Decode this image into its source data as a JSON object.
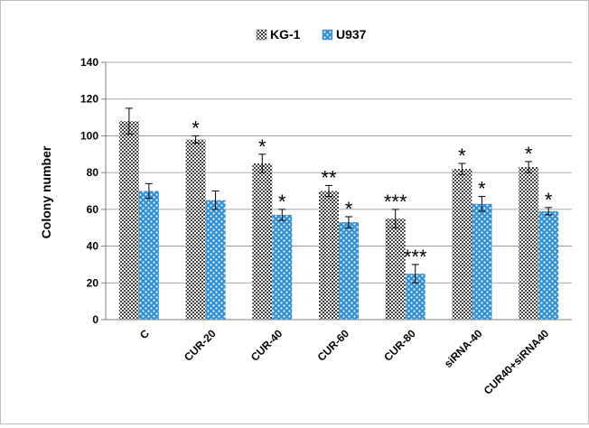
{
  "chart_data": {
    "type": "bar",
    "title": "",
    "xlabel": "",
    "ylabel": "Colony number",
    "ylim": [
      0,
      140
    ],
    "yticks": [
      0,
      20,
      40,
      60,
      80,
      100,
      120,
      140
    ],
    "grid": true,
    "legend_position": "top",
    "categories": [
      "C",
      "CUR-20",
      "CUR-40",
      "CUR-60",
      "CUR-80",
      "siRNA-40",
      "CUR40+siRNA40"
    ],
    "series": [
      {
        "name": "KG-1",
        "color": "#404040",
        "values": [
          108,
          98,
          85,
          70,
          55,
          82,
          83
        ],
        "errors": [
          7,
          2,
          5,
          3,
          5,
          3,
          3
        ],
        "significance": [
          "",
          "*",
          "*",
          "**",
          "***",
          "*",
          "*"
        ]
      },
      {
        "name": "U937",
        "color": "#3a9ad9",
        "values": [
          70,
          65,
          57,
          53,
          25,
          63,
          59
        ],
        "errors": [
          4,
          5,
          3,
          3,
          5,
          4,
          2
        ],
        "significance": [
          "",
          "",
          "*",
          "*",
          "***",
          "*",
          "*"
        ]
      }
    ]
  }
}
